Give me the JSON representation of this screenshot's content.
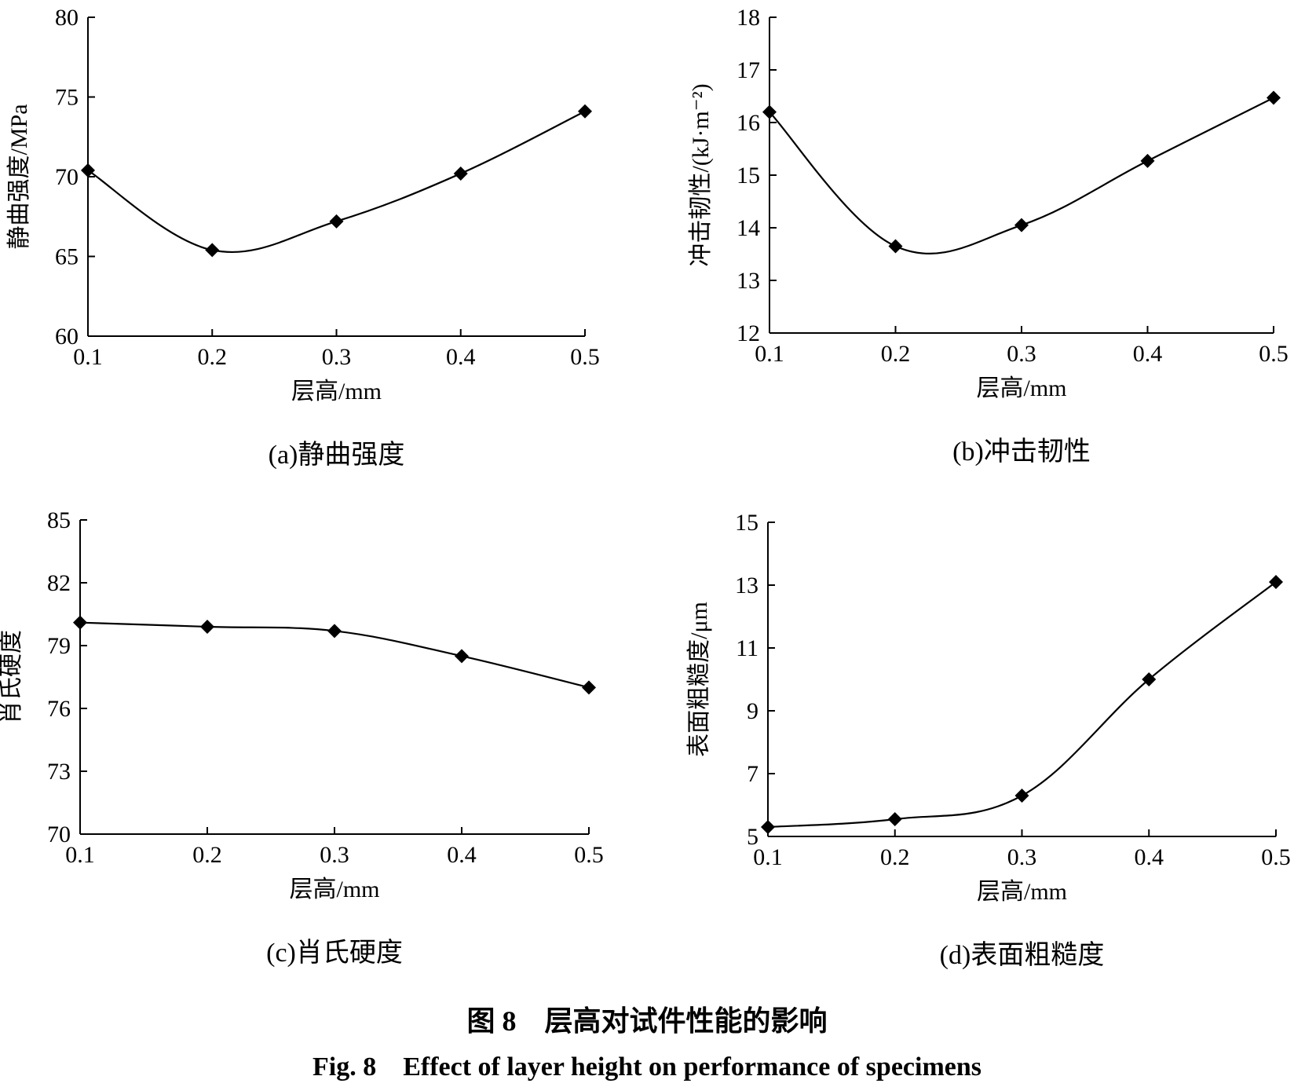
{
  "figure": {
    "caption_cn": "图 8　层高对试件性能的影响",
    "caption_en": "Fig. 8　Effect of layer height on performance of specimens"
  },
  "chart_data": [
    {
      "id": "a",
      "type": "line",
      "caption": "(a)静曲强度",
      "xlabel": "层高/mm",
      "ylabel": "静曲强度/MPa",
      "x": [
        0.1,
        0.2,
        0.3,
        0.4,
        0.5
      ],
      "y": [
        70.4,
        65.4,
        67.2,
        70.2,
        74.1
      ],
      "xticks": [
        "0.1",
        "0.2",
        "0.3",
        "0.4",
        "0.5"
      ],
      "yticks": [
        "60",
        "65",
        "70",
        "75",
        "80"
      ],
      "xlim": [
        0.1,
        0.5
      ],
      "ylim": [
        60,
        80
      ],
      "marker": "diamond",
      "grid": false
    },
    {
      "id": "b",
      "type": "line",
      "caption": "(b)冲击韧性",
      "xlabel": "层高/mm",
      "ylabel": "冲击韧性/(kJ·m⁻²)",
      "x": [
        0.1,
        0.2,
        0.3,
        0.4,
        0.5
      ],
      "y": [
        16.2,
        13.65,
        14.05,
        15.27,
        16.47
      ],
      "xticks": [
        "0.1",
        "0.2",
        "0.3",
        "0.4",
        "0.5"
      ],
      "yticks": [
        "12",
        "13",
        "14",
        "15",
        "16",
        "17",
        "18"
      ],
      "xlim": [
        0.1,
        0.5
      ],
      "ylim": [
        12,
        18
      ],
      "marker": "diamond",
      "grid": false
    },
    {
      "id": "c",
      "type": "line",
      "caption": "(c)肖氏硬度",
      "xlabel": "层高/mm",
      "ylabel": "肖氏硬度",
      "x": [
        0.1,
        0.2,
        0.3,
        0.4,
        0.5
      ],
      "y": [
        80.1,
        79.9,
        79.7,
        78.5,
        77.0
      ],
      "xticks": [
        "0.1",
        "0.2",
        "0.3",
        "0.4",
        "0.5"
      ],
      "yticks": [
        "70",
        "73",
        "76",
        "79",
        "82",
        "85"
      ],
      "xlim": [
        0.1,
        0.5
      ],
      "ylim": [
        70,
        85
      ],
      "marker": "diamond",
      "grid": false
    },
    {
      "id": "d",
      "type": "line",
      "caption": "(d)表面粗糙度",
      "xlabel": "层高/mm",
      "ylabel": "表面粗糙度/μm",
      "x": [
        0.1,
        0.2,
        0.3,
        0.4,
        0.5
      ],
      "y": [
        5.3,
        5.55,
        6.3,
        10.0,
        13.1
      ],
      "xticks": [
        "0.1",
        "0.2",
        "0.3",
        "0.4",
        "0.5"
      ],
      "yticks": [
        "5",
        "7",
        "9",
        "11",
        "13",
        "15"
      ],
      "xlim": [
        0.1,
        0.5
      ],
      "ylim": [
        5,
        15
      ],
      "marker": "diamond",
      "grid": false
    }
  ]
}
